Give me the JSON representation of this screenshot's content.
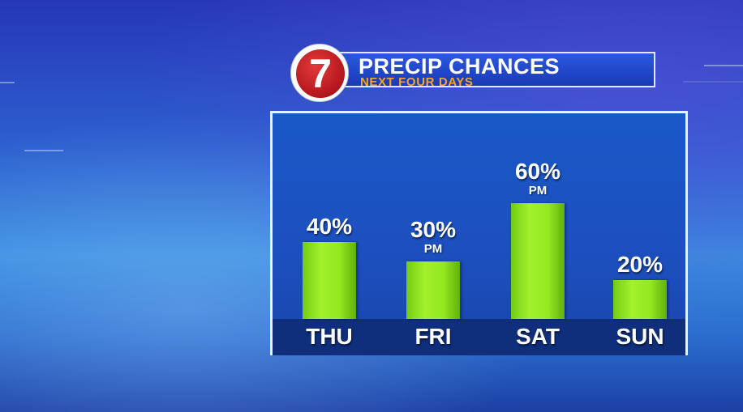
{
  "header": {
    "title": "PRECIP CHANCES",
    "subtitle": "NEXT FOUR DAYS",
    "logo_text": "7"
  },
  "colors": {
    "bar": "#93e81f",
    "title_text": "#ffffff",
    "subtitle_text": "#f5a623",
    "panel": "#1c4fbd",
    "axis_band": "#0f2f7c"
  },
  "chart_data": {
    "type": "bar",
    "title": "PRECIP CHANCES",
    "subtitle": "NEXT FOUR DAYS",
    "categories": [
      "THU",
      "FRI",
      "SAT",
      "SUN"
    ],
    "values": [
      40,
      30,
      60,
      20
    ],
    "value_labels": [
      "40%",
      "30%",
      "60%",
      "20%"
    ],
    "notes": [
      "",
      "PM",
      "PM",
      ""
    ],
    "ylim": [
      0,
      100
    ],
    "grid": false,
    "legend": "none"
  }
}
